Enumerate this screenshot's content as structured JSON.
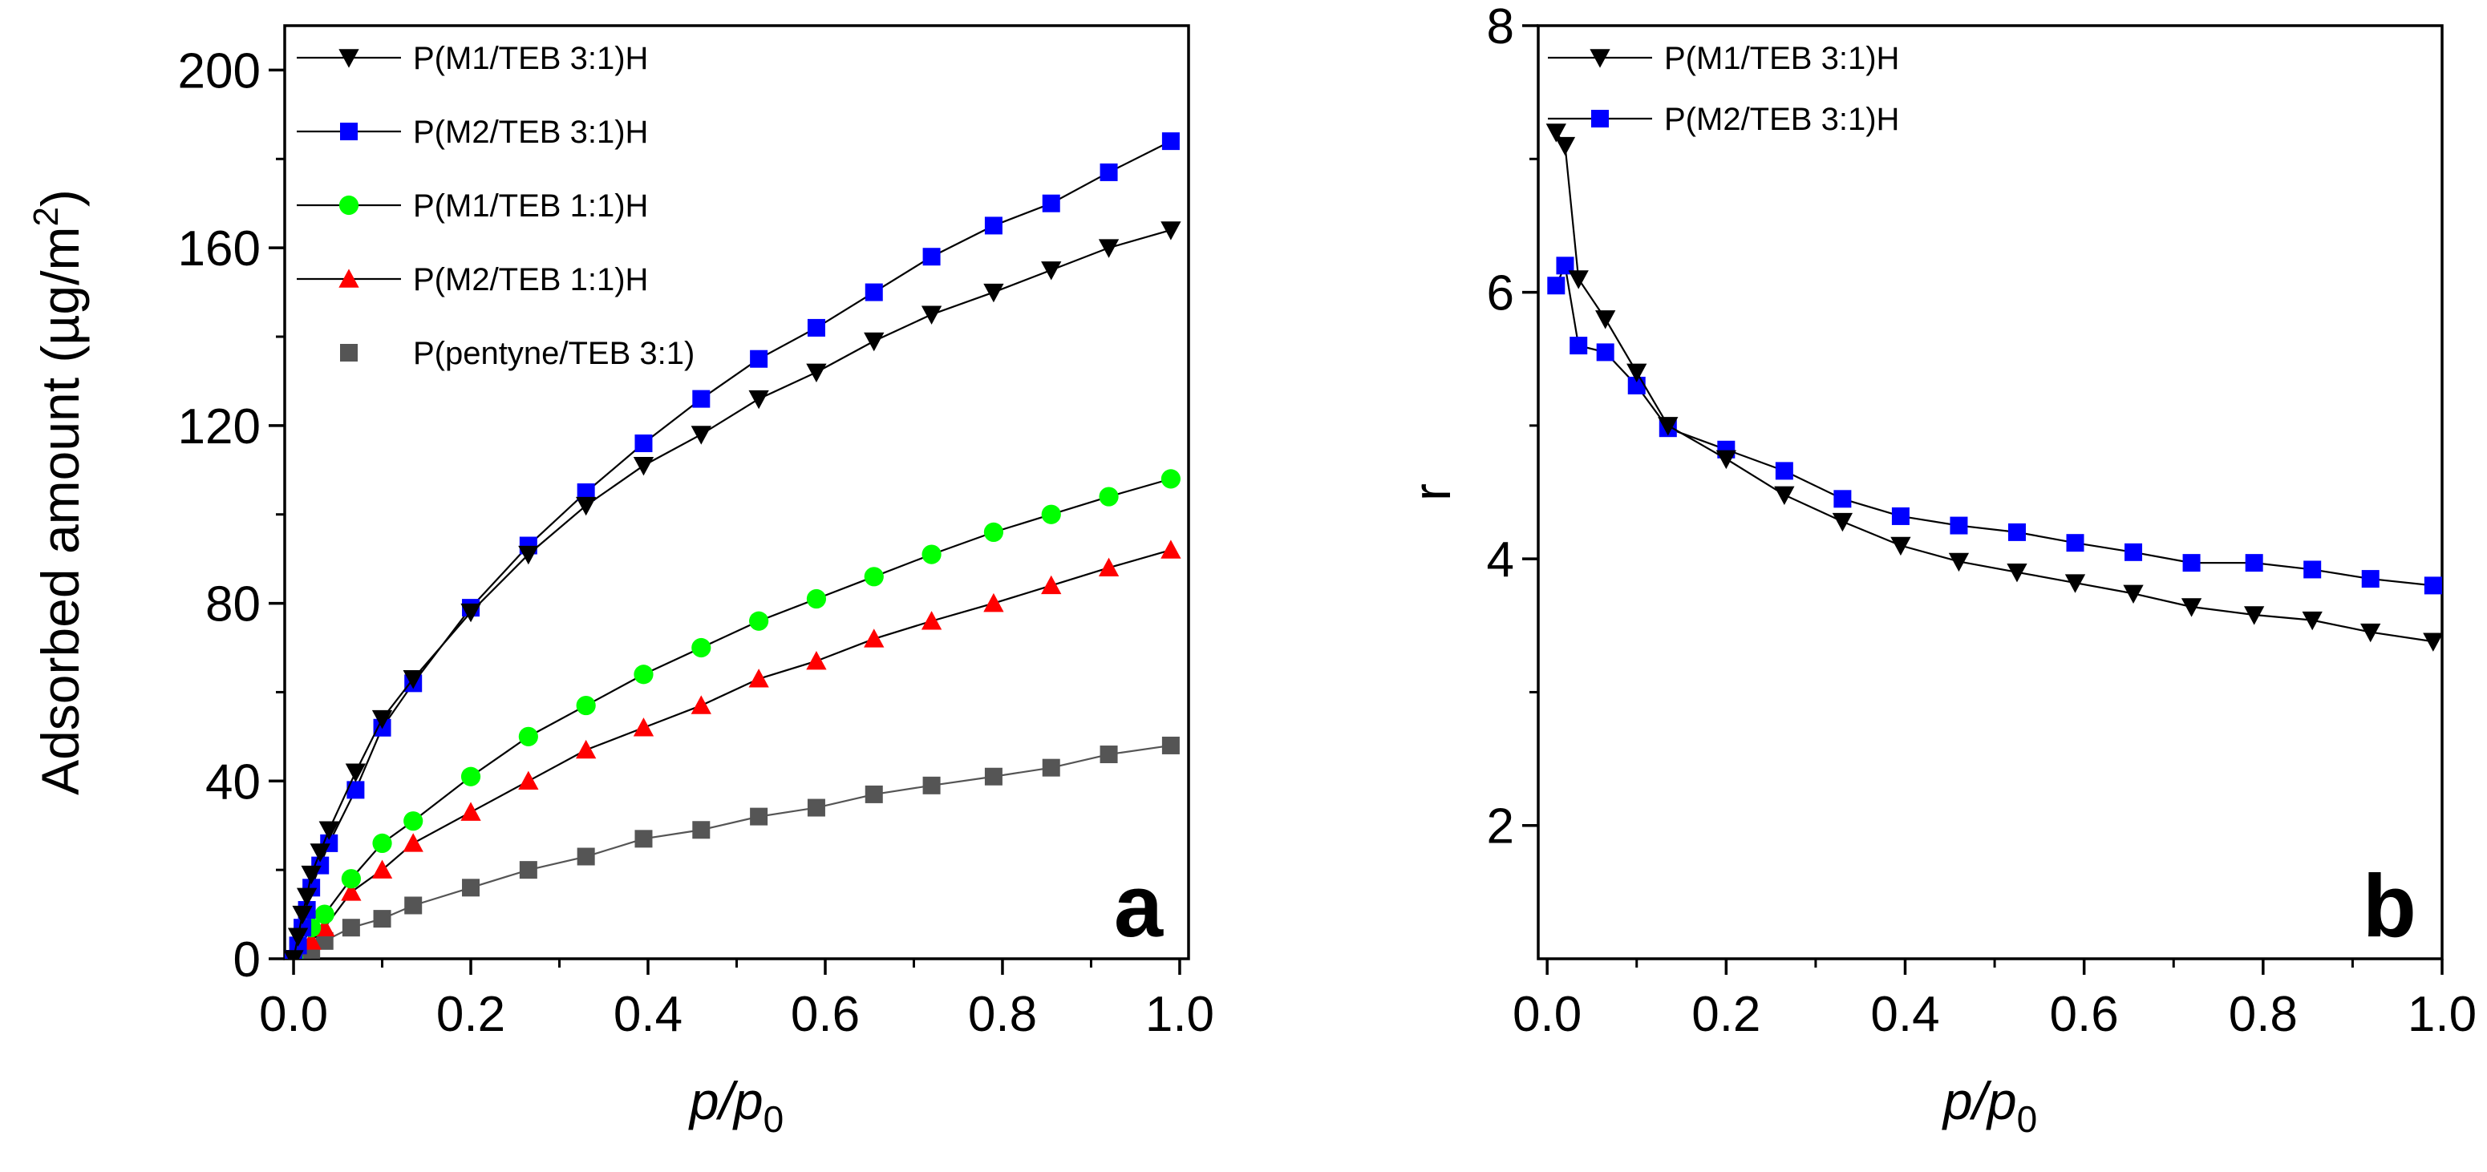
{
  "chart_data": [
    {
      "panel": "a",
      "type": "line",
      "xlabel": "p/p0",
      "xlabel_parts": {
        "base": "p/p",
        "sub": "0"
      },
      "ylabel": "Adsorbed amount (µg/m2)",
      "ylabel_parts": {
        "base": "Adsorbed amount (µg/m",
        "sup": "2",
        "close": ")"
      },
      "xlim": [
        -0.01,
        1.01
      ],
      "ylim": [
        0,
        210
      ],
      "xticks": [
        0.0,
        0.2,
        0.4,
        0.6,
        0.8,
        1.0
      ],
      "xtick_labels": [
        "0.0",
        "0.2",
        "0.4",
        "0.6",
        "0.8",
        "1.0"
      ],
      "yticks": [
        0,
        40,
        80,
        120,
        160,
        200
      ],
      "ytick_labels": [
        "0",
        "40",
        "80",
        "120",
        "160",
        "200"
      ],
      "legend_position": "top-left",
      "letter": "a",
      "series": [
        {
          "name": "P(M1/TEB 3:1)H",
          "color": "#000000",
          "marker": "triangle-down",
          "x": [
            0.0,
            0.005,
            0.01,
            0.015,
            0.02,
            0.03,
            0.04,
            0.07,
            0.1,
            0.135,
            0.2,
            0.265,
            0.33,
            0.395,
            0.46,
            0.525,
            0.59,
            0.655,
            0.72,
            0.79,
            0.855,
            0.92,
            0.99
          ],
          "y": [
            0,
            5,
            10,
            14,
            19,
            24,
            29,
            42,
            54,
            63,
            78,
            91,
            102,
            111,
            118,
            126,
            132,
            139,
            145,
            150,
            155,
            160,
            164
          ]
        },
        {
          "name": "P(M2/TEB 3:1)H",
          "color": "#0000ff",
          "marker": "square",
          "x": [
            0.0,
            0.005,
            0.01,
            0.015,
            0.02,
            0.03,
            0.04,
            0.07,
            0.1,
            0.135,
            0.2,
            0.265,
            0.33,
            0.395,
            0.46,
            0.525,
            0.59,
            0.655,
            0.72,
            0.79,
            0.855,
            0.92,
            0.99
          ],
          "y": [
            0,
            3,
            7,
            11,
            16,
            21,
            26,
            38,
            52,
            62,
            79,
            93,
            105,
            116,
            126,
            135,
            142,
            150,
            158,
            165,
            170,
            177,
            184
          ]
        },
        {
          "name": "P(M1/TEB 1:1)H",
          "color": "#00ff00",
          "marker": "circle",
          "x": [
            0.0,
            0.02,
            0.035,
            0.065,
            0.1,
            0.135,
            0.2,
            0.265,
            0.33,
            0.395,
            0.46,
            0.525,
            0.59,
            0.655,
            0.72,
            0.79,
            0.855,
            0.92,
            0.99
          ],
          "y": [
            0,
            7,
            10,
            18,
            26,
            31,
            41,
            50,
            57,
            64,
            70,
            76,
            81,
            86,
            91,
            96,
            100,
            104,
            108
          ]
        },
        {
          "name": "P(M2/TEB 1:1)H",
          "color": "#ff0000",
          "marker": "triangle-up",
          "x": [
            0.0,
            0.02,
            0.035,
            0.065,
            0.1,
            0.135,
            0.2,
            0.265,
            0.33,
            0.395,
            0.46,
            0.525,
            0.59,
            0.655,
            0.72,
            0.79,
            0.855,
            0.92,
            0.99
          ],
          "y": [
            0,
            4,
            7,
            15,
            20,
            26,
            33,
            40,
            47,
            52,
            57,
            63,
            67,
            72,
            76,
            80,
            84,
            88,
            92
          ]
        },
        {
          "name": "P(pentyne/TEB 3:1)",
          "color": "#555555",
          "marker": "square",
          "x": [
            0.0,
            0.01,
            0.02,
            0.035,
            0.065,
            0.1,
            0.135,
            0.2,
            0.265,
            0.33,
            0.395,
            0.46,
            0.525,
            0.59,
            0.655,
            0.72,
            0.79,
            0.855,
            0.92,
            0.99
          ],
          "y": [
            0,
            1,
            2,
            4,
            7,
            9,
            12,
            16,
            20,
            23,
            27,
            29,
            32,
            34,
            37,
            39,
            41,
            43,
            46,
            48
          ]
        }
      ]
    },
    {
      "panel": "b",
      "type": "line",
      "xlabel": "p/p0",
      "xlabel_parts": {
        "base": "p/p",
        "sub": "0"
      },
      "ylabel": "r",
      "xlim": [
        -0.01,
        1.0
      ],
      "ylim": [
        1,
        8
      ],
      "xticks": [
        0.0,
        0.2,
        0.4,
        0.6,
        0.8,
        1.0
      ],
      "xtick_labels": [
        "0.0",
        "0.2",
        "0.4",
        "0.6",
        "0.8",
        "1.0"
      ],
      "yticks": [
        2,
        4,
        6,
        8
      ],
      "ytick_labels": [
        "2",
        "4",
        "6",
        "8"
      ],
      "legend_position": "top-left",
      "letter": "b",
      "series": [
        {
          "name": "P(M1/TEB 3:1)H",
          "color": "#000000",
          "marker": "triangle-down",
          "x": [
            0.01,
            0.02,
            0.035,
            0.065,
            0.1,
            0.135,
            0.2,
            0.265,
            0.33,
            0.395,
            0.46,
            0.525,
            0.59,
            0.655,
            0.72,
            0.79,
            0.855,
            0.92,
            0.99
          ],
          "y": [
            7.2,
            7.1,
            6.1,
            5.8,
            5.4,
            5.0,
            4.75,
            4.48,
            4.28,
            4.1,
            3.98,
            3.9,
            3.82,
            3.74,
            3.64,
            3.58,
            3.54,
            3.45,
            3.38
          ]
        },
        {
          "name": "P(M2/TEB 3:1)H",
          "color": "#0000ff",
          "marker": "square",
          "x": [
            0.01,
            0.02,
            0.035,
            0.065,
            0.1,
            0.135,
            0.2,
            0.265,
            0.33,
            0.395,
            0.46,
            0.525,
            0.59,
            0.655,
            0.72,
            0.79,
            0.855,
            0.92,
            0.99
          ],
          "y": [
            6.05,
            6.2,
            5.6,
            5.55,
            5.3,
            4.98,
            4.82,
            4.66,
            4.45,
            4.32,
            4.25,
            4.2,
            4.12,
            4.05,
            3.97,
            3.97,
            3.92,
            3.85,
            3.8
          ]
        }
      ]
    }
  ]
}
